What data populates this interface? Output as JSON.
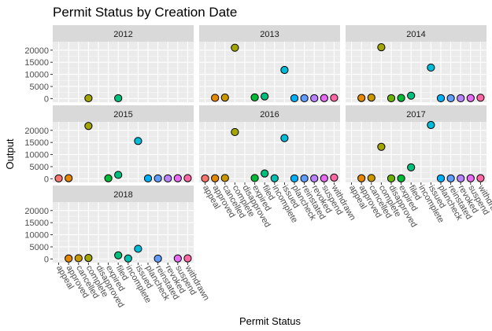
{
  "chart_data": {
    "type": "scatter",
    "title": "Permit Status by Creation Date",
    "xlabel": "Permit Status",
    "ylabel": "Output",
    "ylim": [
      -1500,
      23500
    ],
    "yticks": [
      0,
      5000,
      10000,
      15000,
      20000
    ],
    "ytick_labels": [
      "0",
      "5000",
      "10000",
      "15000",
      "20000"
    ],
    "grid": true,
    "categories": [
      "appeal",
      "approved",
      "cancelled",
      "complete",
      "disapproved",
      "expired",
      "filed",
      "incomplete",
      "issued",
      "plancheck",
      "reinstated",
      "revoked",
      "suspend",
      "withdrawn"
    ],
    "category_colors": {
      "appeal": "#F8766D",
      "approved": "#E58700",
      "cancelled": "#C99800",
      "complete": "#A3A500",
      "disapproved": "#6BB100",
      "expired": "#00BA38",
      "filed": "#00BF7D",
      "incomplete": "#00C0AF",
      "issued": "#00BCD8",
      "plancheck": "#00B0F6",
      "reinstated": "#619CFF",
      "revoked": "#B983FF",
      "suspend": "#E76BF3",
      "withdrawn": "#FF67A4"
    },
    "panels": [
      {
        "label": "2012",
        "points": [
          {
            "x": "complete",
            "y": 150
          },
          {
            "x": "filed",
            "y": 150
          }
        ]
      },
      {
        "label": "2013",
        "points": [
          {
            "x": "approved",
            "y": 300
          },
          {
            "x": "cancelled",
            "y": 400
          },
          {
            "x": "complete",
            "y": 21000
          },
          {
            "x": "expired",
            "y": 500
          },
          {
            "x": "filed",
            "y": 900
          },
          {
            "x": "issued",
            "y": 11800
          },
          {
            "x": "plancheck",
            "y": 150
          },
          {
            "x": "reinstated",
            "y": 150
          },
          {
            "x": "revoked",
            "y": 150
          },
          {
            "x": "suspend",
            "y": 200
          },
          {
            "x": "withdrawn",
            "y": 300
          }
        ]
      },
      {
        "label": "2014",
        "points": [
          {
            "x": "approved",
            "y": 250
          },
          {
            "x": "cancelled",
            "y": 400
          },
          {
            "x": "complete",
            "y": 21200
          },
          {
            "x": "disapproved",
            "y": 150
          },
          {
            "x": "expired",
            "y": 250
          },
          {
            "x": "filed",
            "y": 1200
          },
          {
            "x": "issued",
            "y": 12800
          },
          {
            "x": "plancheck",
            "y": 150
          },
          {
            "x": "reinstated",
            "y": 150
          },
          {
            "x": "revoked",
            "y": 150
          },
          {
            "x": "suspend",
            "y": 200
          },
          {
            "x": "withdrawn",
            "y": 350
          }
        ]
      },
      {
        "label": "2015",
        "points": [
          {
            "x": "appeal",
            "y": 150
          },
          {
            "x": "approved",
            "y": 250
          },
          {
            "x": "complete",
            "y": 21800
          },
          {
            "x": "expired",
            "y": 200
          },
          {
            "x": "filed",
            "y": 1600
          },
          {
            "x": "issued",
            "y": 15600
          },
          {
            "x": "plancheck",
            "y": 150
          },
          {
            "x": "reinstated",
            "y": 150
          },
          {
            "x": "revoked",
            "y": 150
          },
          {
            "x": "suspend",
            "y": 200
          },
          {
            "x": "withdrawn",
            "y": 250
          }
        ]
      },
      {
        "label": "2016",
        "points": [
          {
            "x": "appeal",
            "y": 150
          },
          {
            "x": "approved",
            "y": 200
          },
          {
            "x": "cancelled",
            "y": 300
          },
          {
            "x": "complete",
            "y": 19300
          },
          {
            "x": "expired",
            "y": 300
          },
          {
            "x": "filed",
            "y": 2200
          },
          {
            "x": "incomplete",
            "y": 200
          },
          {
            "x": "issued",
            "y": 16800
          },
          {
            "x": "plancheck",
            "y": 150
          },
          {
            "x": "reinstated",
            "y": 150
          },
          {
            "x": "revoked",
            "y": 150
          },
          {
            "x": "suspend",
            "y": 200
          },
          {
            "x": "withdrawn",
            "y": 500
          }
        ]
      },
      {
        "label": "2017",
        "points": [
          {
            "x": "approved",
            "y": 200
          },
          {
            "x": "cancelled",
            "y": 300
          },
          {
            "x": "complete",
            "y": 13200
          },
          {
            "x": "disapproved",
            "y": 150
          },
          {
            "x": "expired",
            "y": 150
          },
          {
            "x": "filed",
            "y": 4700
          },
          {
            "x": "issued",
            "y": 22200
          },
          {
            "x": "plancheck",
            "y": 150
          },
          {
            "x": "reinstated",
            "y": 150
          },
          {
            "x": "revoked",
            "y": 150
          },
          {
            "x": "suspend",
            "y": 200
          },
          {
            "x": "withdrawn",
            "y": 250
          }
        ]
      },
      {
        "label": "2018",
        "points": [
          {
            "x": "approved",
            "y": 200
          },
          {
            "x": "cancelled",
            "y": 300
          },
          {
            "x": "complete",
            "y": 400
          },
          {
            "x": "filed",
            "y": 1500
          },
          {
            "x": "incomplete",
            "y": 200
          },
          {
            "x": "issued",
            "y": 4200
          },
          {
            "x": "reinstated",
            "y": 150
          },
          {
            "x": "suspend",
            "y": 200
          },
          {
            "x": "withdrawn",
            "y": 250
          }
        ]
      }
    ]
  }
}
